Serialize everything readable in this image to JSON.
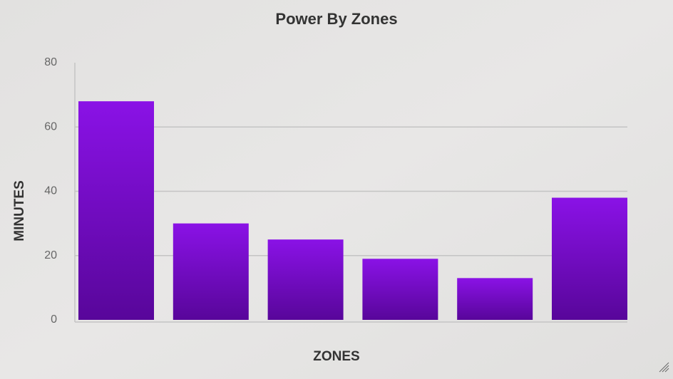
{
  "chart_data": {
    "type": "bar",
    "title": "Power By Zones",
    "x_label": "ZONES",
    "y_label": "MINUTES",
    "categories": [
      null,
      null,
      null,
      null,
      null,
      null
    ],
    "values": [
      68,
      30,
      25,
      19,
      13,
      38
    ],
    "color": "#8a12e6",
    "color_bottom": "#58069a",
    "ylim": [
      0,
      80
    ],
    "yticks": [
      0,
      20,
      40,
      60,
      80
    ],
    "grid": true
  }
}
